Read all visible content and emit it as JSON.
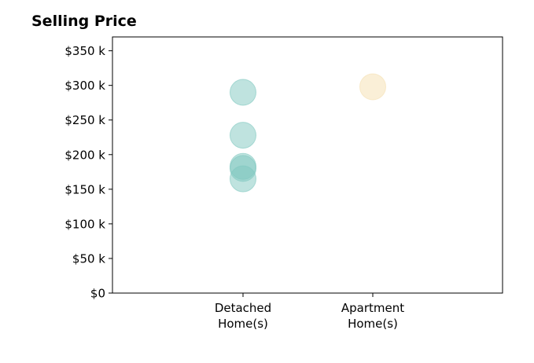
{
  "chart_data": {
    "type": "scatter",
    "title": "Selling Price",
    "categories": [
      "Detached\nHome(s)",
      "Apartment\nHome(s)"
    ],
    "series": [
      {
        "category": "Detached\nHome(s)",
        "color": "#7fc8c0",
        "values": [
          290000,
          228000,
          183000,
          180000,
          165000
        ]
      },
      {
        "category": "Apartment\nHome(s)",
        "color": "#f5dfb0",
        "values": [
          298000
        ]
      }
    ],
    "yticks": [
      {
        "value": 0,
        "label": "$0"
      },
      {
        "value": 50000,
        "label": "$50 k"
      },
      {
        "value": 100000,
        "label": "$100 k"
      },
      {
        "value": 150000,
        "label": "$150 k"
      },
      {
        "value": 200000,
        "label": "$200 k"
      },
      {
        "value": 250000,
        "label": "$250 k"
      },
      {
        "value": 300000,
        "label": "$300 k"
      },
      {
        "value": 350000,
        "label": "$350 k"
      }
    ],
    "ylim": [
      0,
      370000
    ],
    "grid": false,
    "legend": "none"
  }
}
